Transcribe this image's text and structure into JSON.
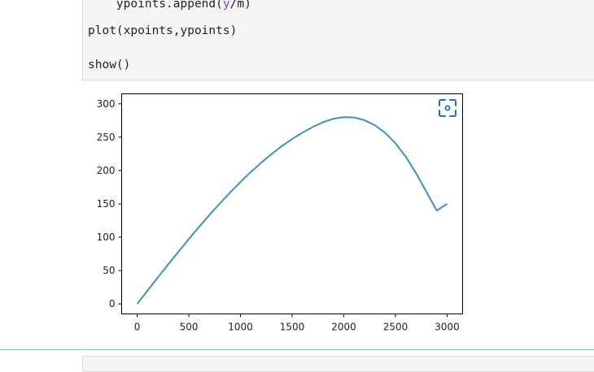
{
  "code_cell": {
    "line_partial_prefix": "    ypoints.append(",
    "line_partial_highlight": "y",
    "line_partial_suffix": "/m)",
    "line_plot": "plot(xpoints,ypoints)",
    "line_show": "show()"
  },
  "colors": {
    "line": "#3d8fc6",
    "expand_icon": "#1a73c9",
    "cell_divider": "#8fcf8f"
  },
  "icons": {
    "expand": "focus-frame-icon"
  },
  "chart_data": {
    "type": "line",
    "title": "",
    "xlabel": "",
    "ylabel": "",
    "xlim": [
      -150,
      3150
    ],
    "ylim": [
      -15,
      315
    ],
    "xticks": [
      0,
      500,
      1000,
      1500,
      2000,
      2500,
      3000
    ],
    "yticks": [
      0,
      50,
      100,
      150,
      200,
      250,
      300
    ],
    "xtick_labels": [
      "0",
      "500",
      "1000",
      "1500",
      "2000",
      "2500",
      "3000"
    ],
    "ytick_labels": [
      "0",
      "50",
      "100",
      "150",
      "200",
      "250",
      "300"
    ],
    "grid": false,
    "series": [
      {
        "x": [
          0,
          100,
          200,
          300,
          400,
          500,
          600,
          700,
          800,
          900,
          1000,
          1100,
          1200,
          1300,
          1400,
          1500,
          1600,
          1700,
          1800,
          1900,
          2000,
          2100,
          2200,
          2300,
          2400,
          2500,
          2600,
          2700,
          2800,
          2900,
          3000
        ],
        "y": [
          0,
          19.8,
          39.6,
          59.1,
          78.3,
          97.2,
          115.6,
          133.4,
          150.6,
          167.1,
          182.8,
          197.7,
          211.6,
          224.6,
          236.5,
          247.2,
          256.8,
          265.2,
          272.4,
          277.7,
          280.0,
          279.5,
          275.5,
          268.0,
          256.6,
          240.9,
          220.7,
          196.0,
          168.0,
          140.0,
          150.0
        ]
      }
    ]
  }
}
